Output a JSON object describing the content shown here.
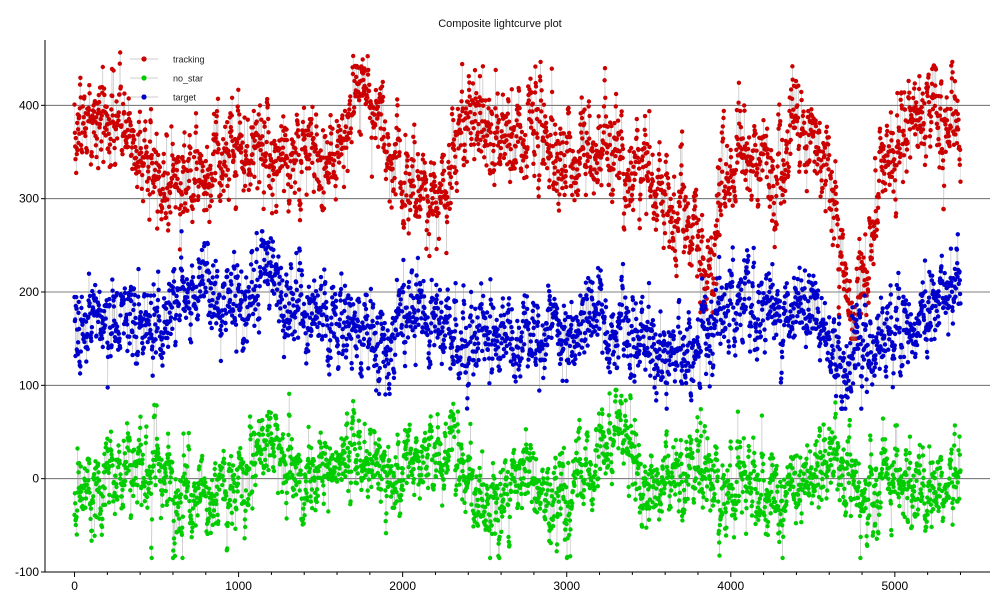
{
  "chart_data": {
    "type": "scatter",
    "title": "Composite lightcurve plot",
    "xlabel": "",
    "ylabel": "",
    "xlim": [
      -180,
      5580
    ],
    "ylim": [
      -100,
      470
    ],
    "xticks": [
      0,
      1000,
      2000,
      3000,
      4000,
      5000
    ],
    "yticks": [
      -100,
      0,
      100,
      200,
      300,
      400
    ],
    "grid": "horizontal",
    "legend_position": "top-left",
    "n_points": 2700,
    "x_range": [
      0,
      5400
    ],
    "series": [
      {
        "name": "tracking",
        "color": "#cc0000",
        "level_profile": [
          [
            0,
            380
          ],
          [
            300,
            380
          ],
          [
            500,
            320
          ],
          [
            800,
            330
          ],
          [
            1000,
            360
          ],
          [
            1200,
            350
          ],
          [
            1500,
            340
          ],
          [
            1800,
            420
          ],
          [
            2000,
            320
          ],
          [
            2200,
            290
          ],
          [
            2400,
            400
          ],
          [
            2600,
            350
          ],
          [
            2800,
            390
          ],
          [
            3000,
            340
          ],
          [
            3200,
            360
          ],
          [
            3500,
            320
          ],
          [
            3700,
            290
          ],
          [
            3850,
            210
          ],
          [
            4000,
            340
          ],
          [
            4200,
            330
          ],
          [
            4400,
            380
          ],
          [
            4600,
            330
          ],
          [
            4750,
            160
          ],
          [
            4900,
            320
          ],
          [
            5200,
            410
          ],
          [
            5400,
            350
          ]
        ],
        "spread": 28,
        "y_min": 150,
        "y_max": 465
      },
      {
        "name": "no_star",
        "color": "#00cc00",
        "level_profile": [
          [
            0,
            -30
          ],
          [
            300,
            10
          ],
          [
            500,
            30
          ],
          [
            700,
            -40
          ],
          [
            1000,
            0
          ],
          [
            1200,
            40
          ],
          [
            1400,
            -10
          ],
          [
            1700,
            30
          ],
          [
            1900,
            0
          ],
          [
            2100,
            10
          ],
          [
            2300,
            40
          ],
          [
            2500,
            -50
          ],
          [
            2700,
            0
          ],
          [
            3000,
            -20
          ],
          [
            3300,
            50
          ],
          [
            3500,
            -10
          ],
          [
            3800,
            20
          ],
          [
            4000,
            -10
          ],
          [
            4300,
            -30
          ],
          [
            4600,
            40
          ],
          [
            4800,
            -20
          ],
          [
            5000,
            10
          ],
          [
            5200,
            -30
          ],
          [
            5400,
            20
          ]
        ],
        "spread": 24,
        "y_min": -85,
        "y_max": 95
      },
      {
        "name": "target",
        "color": "#0000cc",
        "level_profile": [
          [
            0,
            160
          ],
          [
            300,
            170
          ],
          [
            600,
            180
          ],
          [
            800,
            210
          ],
          [
            1000,
            180
          ],
          [
            1200,
            215
          ],
          [
            1400,
            170
          ],
          [
            1700,
            165
          ],
          [
            1900,
            140
          ],
          [
            2100,
            200
          ],
          [
            2300,
            150
          ],
          [
            2500,
            145
          ],
          [
            2800,
            160
          ],
          [
            3000,
            160
          ],
          [
            3200,
            180
          ],
          [
            3500,
            140
          ],
          [
            3700,
            130
          ],
          [
            3900,
            170
          ],
          [
            4100,
            205
          ],
          [
            4300,
            170
          ],
          [
            4500,
            190
          ],
          [
            4700,
            120
          ],
          [
            4900,
            150
          ],
          [
            5100,
            155
          ],
          [
            5300,
            200
          ],
          [
            5400,
            230
          ]
        ],
        "spread": 24,
        "y_min": 75,
        "y_max": 265
      }
    ]
  }
}
